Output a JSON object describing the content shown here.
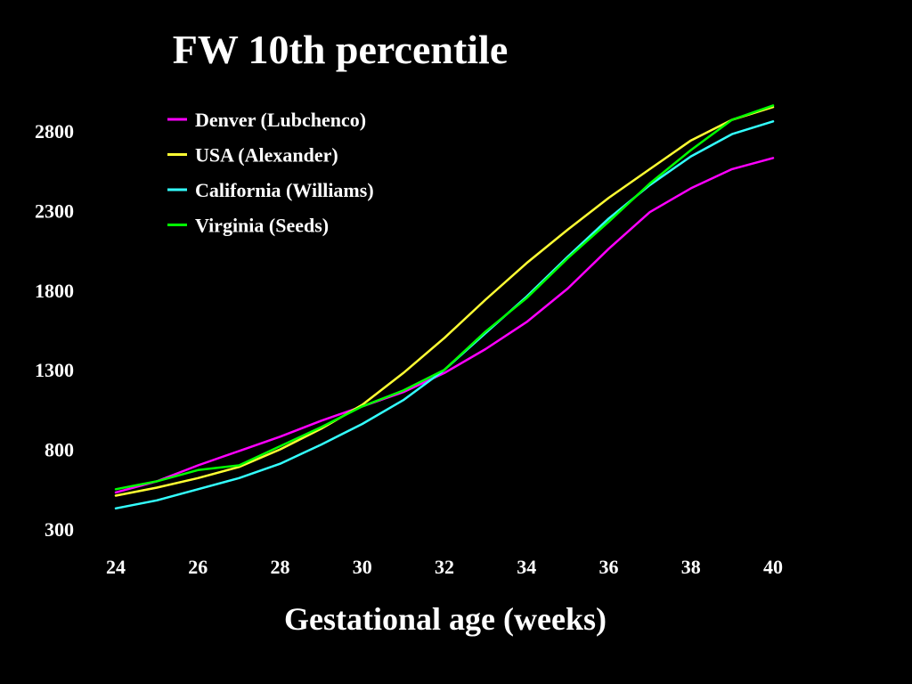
{
  "chart_data": {
    "type": "line",
    "title": "FW 10th percentile",
    "xlabel": "Gestational age (weeks)",
    "ylabel": "",
    "xlim": [
      24,
      40
    ],
    "ylim": [
      300,
      2800
    ],
    "x_ticks": [
      24,
      26,
      28,
      30,
      32,
      34,
      36,
      38,
      40
    ],
    "y_ticks": [
      300,
      800,
      1300,
      1800,
      2300,
      2800
    ],
    "grid": false,
    "legend_position": "top-left",
    "x": [
      24,
      25,
      26,
      27,
      28,
      29,
      30,
      31,
      32,
      33,
      34,
      35,
      36,
      37,
      38,
      39,
      40
    ],
    "series": [
      {
        "name": "Denver (Lubchenco)",
        "color": "#ff00ff",
        "values": [
          530,
          600,
          700,
          790,
          880,
          980,
          1070,
          1160,
          1280,
          1430,
          1600,
          1810,
          2060,
          2290,
          2440,
          2560,
          2630
        ]
      },
      {
        "name": "USA (Alexander)",
        "color": "#ffff33",
        "values": [
          510,
          560,
          620,
          690,
          800,
          930,
          1080,
          1280,
          1500,
          1740,
          1970,
          2180,
          2380,
          2560,
          2740,
          2870,
          2950
        ]
      },
      {
        "name": "California (Williams)",
        "color": "#33ffff",
        "values": [
          430,
          480,
          550,
          620,
          710,
          830,
          960,
          1110,
          1300,
          1530,
          1760,
          2010,
          2250,
          2460,
          2640,
          2780,
          2860
        ]
      },
      {
        "name": "Virginia (Seeds)",
        "color": "#00ff00",
        "values": [
          550,
          600,
          670,
          700,
          820,
          940,
          1070,
          1170,
          1300,
          1540,
          1750,
          2000,
          2230,
          2470,
          2680,
          2870,
          2960
        ]
      }
    ]
  }
}
